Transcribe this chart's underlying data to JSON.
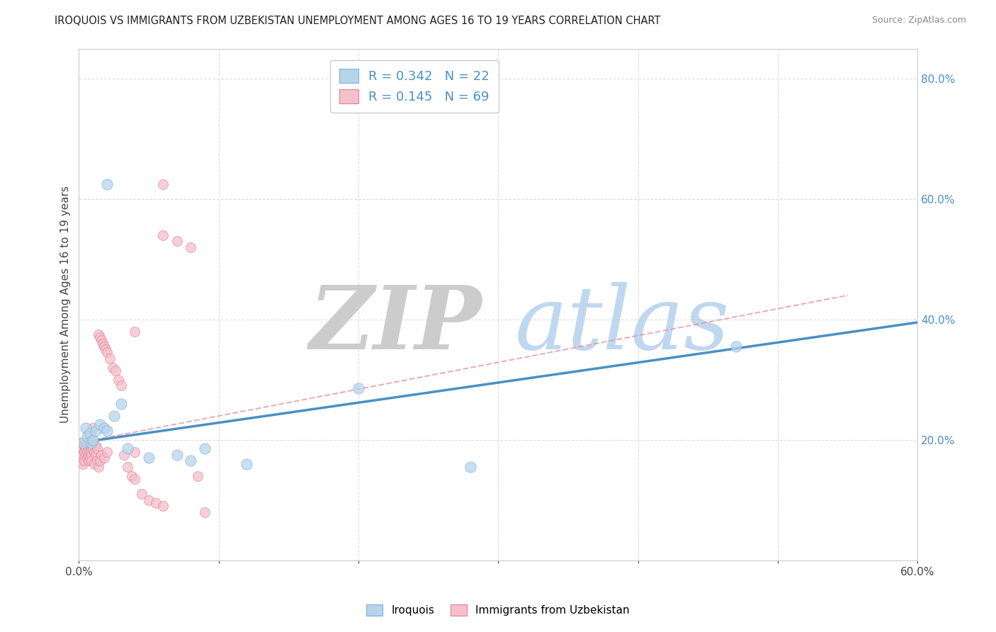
{
  "title": "IROQUOIS VS IMMIGRANTS FROM UZBEKISTAN UNEMPLOYMENT AMONG AGES 16 TO 19 YEARS CORRELATION CHART",
  "source": "Source: ZipAtlas.com",
  "ylabel": "Unemployment Among Ages 16 to 19 years",
  "xmin": 0.0,
  "xmax": 0.6,
  "ymin": 0.0,
  "ymax": 0.85,
  "series1_name": "Iroquois",
  "series1_color": "#b8d4ea",
  "series1_edge_color": "#7bb3d9",
  "series1_R": 0.342,
  "series1_N": 22,
  "series1_x": [
    0.003,
    0.005,
    0.006,
    0.008,
    0.009,
    0.01,
    0.012,
    0.015,
    0.018,
    0.02,
    0.025,
    0.03,
    0.035,
    0.05,
    0.07,
    0.08,
    0.09,
    0.12,
    0.2,
    0.28,
    0.47,
    0.02
  ],
  "series1_y": [
    0.195,
    0.22,
    0.205,
    0.21,
    0.195,
    0.2,
    0.215,
    0.225,
    0.22,
    0.215,
    0.24,
    0.26,
    0.185,
    0.17,
    0.175,
    0.165,
    0.185,
    0.16,
    0.285,
    0.155,
    0.355,
    0.625
  ],
  "series2_name": "Immigrants from Uzbekistan",
  "series2_color": "#f5c0cc",
  "series2_edge_color": "#e08090",
  "series2_R": 0.145,
  "series2_N": 69,
  "series2_x": [
    0.001,
    0.001,
    0.001,
    0.002,
    0.002,
    0.002,
    0.003,
    0.003,
    0.003,
    0.004,
    0.004,
    0.004,
    0.005,
    0.005,
    0.005,
    0.006,
    0.006,
    0.006,
    0.007,
    0.007,
    0.007,
    0.008,
    0.008,
    0.008,
    0.009,
    0.009,
    0.009,
    0.01,
    0.01,
    0.01,
    0.011,
    0.011,
    0.012,
    0.012,
    0.013,
    0.013,
    0.014,
    0.014,
    0.015,
    0.015,
    0.016,
    0.016,
    0.017,
    0.018,
    0.018,
    0.019,
    0.02,
    0.02,
    0.022,
    0.024,
    0.026,
    0.028,
    0.03,
    0.032,
    0.035,
    0.038,
    0.04,
    0.04,
    0.045,
    0.05,
    0.055,
    0.06,
    0.04,
    0.06,
    0.06,
    0.07,
    0.08,
    0.085,
    0.09
  ],
  "series2_y": [
    0.195,
    0.185,
    0.17,
    0.185,
    0.175,
    0.165,
    0.185,
    0.175,
    0.16,
    0.19,
    0.18,
    0.165,
    0.195,
    0.185,
    0.175,
    0.19,
    0.18,
    0.17,
    0.185,
    0.175,
    0.165,
    0.19,
    0.18,
    0.17,
    0.185,
    0.175,
    0.165,
    0.185,
    0.2,
    0.22,
    0.18,
    0.16,
    0.19,
    0.175,
    0.185,
    0.165,
    0.375,
    0.155,
    0.37,
    0.165,
    0.365,
    0.175,
    0.36,
    0.355,
    0.17,
    0.35,
    0.345,
    0.18,
    0.335,
    0.32,
    0.315,
    0.3,
    0.29,
    0.175,
    0.155,
    0.14,
    0.135,
    0.18,
    0.11,
    0.1,
    0.095,
    0.09,
    0.38,
    0.625,
    0.54,
    0.53,
    0.52,
    0.14,
    0.08
  ],
  "trend1_x": [
    0.0,
    0.6
  ],
  "trend1_y": [
    0.195,
    0.395
  ],
  "trend2_x": [
    0.0,
    0.55
  ],
  "trend2_y": [
    0.195,
    0.44
  ],
  "watermark_zip": "ZIP",
  "watermark_atlas": "atlas",
  "watermark_zip_color": "#cccccc",
  "watermark_atlas_color": "#c0d8ef",
  "background_color": "#ffffff",
  "grid_color": "#dddddd"
}
